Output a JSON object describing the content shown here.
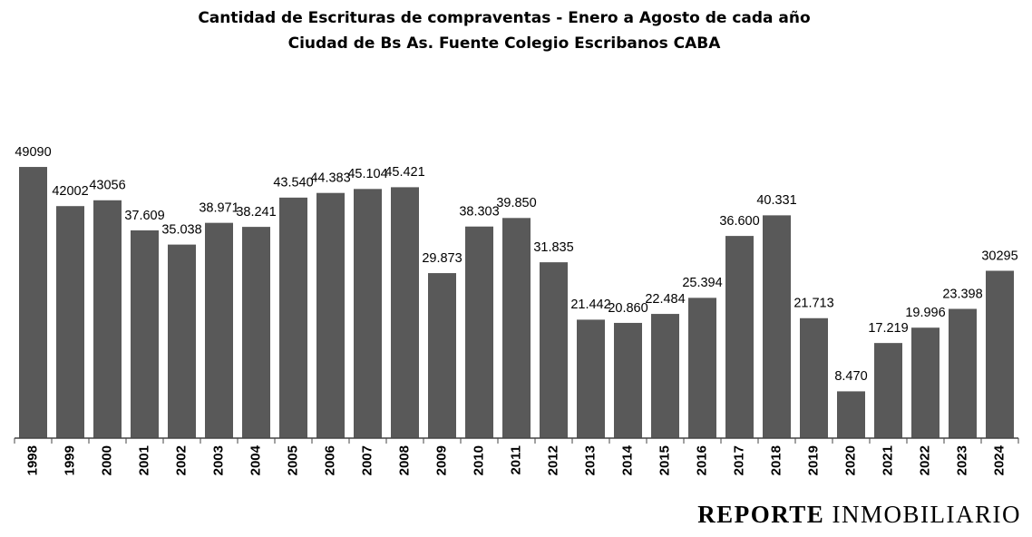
{
  "chart_data": {
    "type": "bar",
    "title": "Cantidad de Escrituras de compraventas - Enero a Agosto de cada año",
    "subtitle": "Ciudad de Bs As. Fuente Colegio Escribanos CABA",
    "categories": [
      "1998",
      "1999",
      "2000",
      "2001",
      "2002",
      "2003",
      "2004",
      "2005",
      "2006",
      "2007",
      "2008",
      "2009",
      "2010",
      "2011",
      "2012",
      "2013",
      "2014",
      "2015",
      "2016",
      "2017",
      "2018",
      "2019",
      "2020",
      "2021",
      "2022",
      "2023",
      "2024"
    ],
    "values": [
      49090,
      42002,
      43056,
      37609,
      35038,
      38971,
      38241,
      43540,
      44383,
      45104,
      45421,
      29873,
      38303,
      39850,
      31835,
      21442,
      20860,
      22484,
      25394,
      36600,
      40331,
      21713,
      8470,
      17219,
      19996,
      23398,
      30295
    ],
    "value_labels": [
      "49090",
      "42002",
      "43056",
      "37.609",
      "35.038",
      "38.971",
      "38.241",
      "43.540",
      "44.383",
      "45.104",
      "45.421",
      "29.873",
      "38.303",
      "39.850",
      "31.835",
      "21.442",
      "20.860",
      "22.484",
      "25.394",
      "36.600",
      "40.331",
      "21.713",
      "8.470",
      "17.219",
      "19.996",
      "23.398",
      "30295"
    ],
    "color": "#595959",
    "ylim": [
      0,
      50000
    ]
  },
  "branding": [
    "REPORTE",
    "INMOBILIARIO"
  ]
}
